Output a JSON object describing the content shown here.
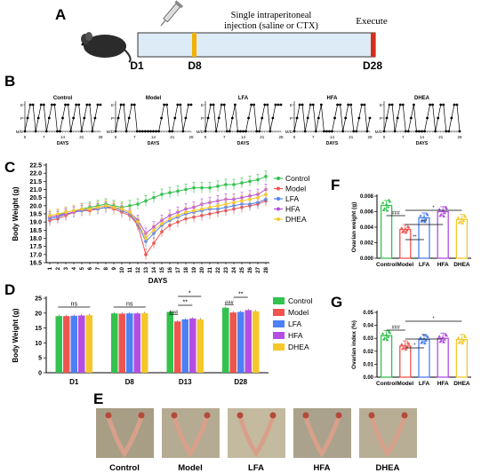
{
  "panel_letters": {
    "A": "A",
    "B": "B",
    "C": "C",
    "D": "D",
    "E": "E",
    "F": "F",
    "G": "G"
  },
  "colors": {
    "Control": "#33c24d",
    "Model": "#f0544f",
    "LFA": "#4d7ff5",
    "HFA": "#b44ee3",
    "DHEA": "#f6c72b",
    "timeline_fill": "#dcebf6",
    "timeline_marker_d8": "#f0b100",
    "timeline_marker_d28": "#d32f1e"
  },
  "panelA": {
    "injection_label_line1": "Single intraperitoneal",
    "injection_label_line2": "injection (saline or CTX)",
    "execute_label": "Execute",
    "day_labels": [
      "D1",
      "D8",
      "D28"
    ]
  },
  "panelB": {
    "groups": [
      "Control",
      "Model",
      "LFA",
      "HFA",
      "DHEA"
    ],
    "y_ticks": [
      "E",
      "P",
      "M/D"
    ],
    "x_ticks": [
      "0",
      "7",
      "14",
      "21",
      "28"
    ],
    "xlabel": "DAYS"
  },
  "panelE": {
    "labels": [
      "Control",
      "Model",
      "LFA",
      "HFA",
      "DHEA"
    ]
  },
  "chart_data": [
    {
      "id": "C",
      "type": "line",
      "xlabel": "DAYS",
      "ylabel": "Body Weight (g)",
      "ylim": [
        16.5,
        22.5
      ],
      "yticks": [
        16.5,
        17.0,
        17.5,
        18.0,
        18.5,
        19.0,
        19.5,
        20.0,
        20.5,
        21.0,
        21.5,
        22.0,
        22.5
      ],
      "x": [
        1,
        2,
        3,
        4,
        5,
        6,
        7,
        8,
        9,
        10,
        11,
        12,
        13,
        14,
        15,
        16,
        17,
        18,
        19,
        20,
        21,
        22,
        23,
        24,
        25,
        26,
        27,
        28
      ],
      "legend_position": "top-right",
      "series": [
        {
          "name": "Control",
          "values": [
            19.3,
            19.4,
            19.6,
            19.7,
            19.8,
            19.9,
            20.0,
            20.1,
            20.0,
            19.9,
            20.0,
            20.1,
            20.3,
            20.5,
            20.7,
            20.8,
            20.9,
            21.0,
            21.1,
            21.1,
            21.1,
            21.2,
            21.3,
            21.3,
            21.4,
            21.5,
            21.6,
            21.8
          ]
        },
        {
          "name": "Model",
          "values": [
            19.1,
            19.2,
            19.4,
            19.6,
            19.7,
            19.7,
            19.8,
            19.9,
            19.8,
            19.6,
            19.4,
            18.8,
            17.0,
            17.7,
            18.4,
            18.8,
            19.0,
            19.2,
            19.3,
            19.4,
            19.5,
            19.6,
            19.7,
            19.8,
            19.9,
            20.0,
            20.1,
            20.3
          ]
        },
        {
          "name": "LFA",
          "values": [
            19.2,
            19.3,
            19.5,
            19.6,
            19.7,
            19.8,
            19.8,
            19.9,
            19.9,
            19.7,
            19.5,
            18.9,
            17.8,
            18.3,
            18.8,
            19.1,
            19.3,
            19.5,
            19.6,
            19.7,
            19.8,
            19.8,
            19.9,
            20.0,
            20.1,
            20.1,
            20.2,
            20.4
          ]
        },
        {
          "name": "HFA",
          "values": [
            19.3,
            19.4,
            19.5,
            19.6,
            19.8,
            19.8,
            19.9,
            20.0,
            19.9,
            19.8,
            19.6,
            19.1,
            18.3,
            18.7,
            19.1,
            19.4,
            19.6,
            19.8,
            19.9,
            20.1,
            20.2,
            20.3,
            20.4,
            20.4,
            20.5,
            20.6,
            20.7,
            21.0
          ]
        },
        {
          "name": "DHEA",
          "values": [
            19.4,
            19.5,
            19.6,
            19.7,
            19.8,
            19.8,
            19.9,
            20.0,
            19.9,
            19.8,
            19.6,
            19.0,
            18.0,
            18.5,
            18.9,
            19.2,
            19.4,
            19.6,
            19.7,
            19.8,
            19.9,
            20.0,
            20.1,
            20.2,
            20.3,
            20.4,
            20.5,
            20.7
          ]
        }
      ]
    },
    {
      "id": "D",
      "type": "bar",
      "ylabel": "Body Weight (g)",
      "ylim": [
        0,
        25
      ],
      "yticks": [
        0,
        5,
        10,
        15,
        20,
        25
      ],
      "categories": [
        "D1",
        "D8",
        "D13",
        "D28"
      ],
      "legend_position": "right",
      "series": [
        {
          "name": "Control",
          "values": [
            19.0,
            19.9,
            20.4,
            21.8
          ]
        },
        {
          "name": "Model",
          "values": [
            19.0,
            19.8,
            17.2,
            20.2
          ]
        },
        {
          "name": "LFA",
          "values": [
            19.1,
            19.9,
            17.9,
            20.4
          ]
        },
        {
          "name": "HFA",
          "values": [
            19.2,
            19.9,
            18.2,
            21.0
          ]
        },
        {
          "name": "DHEA",
          "values": [
            19.3,
            20.0,
            17.9,
            20.6
          ]
        }
      ],
      "annotations": [
        "ns",
        "ns",
        "###",
        "**",
        "*",
        "###",
        "**"
      ]
    },
    {
      "id": "F",
      "type": "bar",
      "ylabel": "Ovarian weight (g)",
      "ylim": [
        0,
        0.008
      ],
      "yticks": [
        "0.000",
        "0.002",
        "0.004",
        "0.006",
        "0.008"
      ],
      "categories": [
        "Control",
        "Model",
        "LFA",
        "HFA",
        "DHEA"
      ],
      "values": [
        0.0068,
        0.0037,
        0.0052,
        0.006,
        0.005
      ],
      "annotations": [
        "###",
        "**",
        "***",
        "*"
      ]
    },
    {
      "id": "G",
      "type": "bar",
      "ylabel": "Ovarian index (%)",
      "ylim": [
        0,
        0.05
      ],
      "yticks": [
        "0.00",
        "0.01",
        "0.02",
        "0.03",
        "0.04",
        "0.05"
      ],
      "categories": [
        "Control",
        "Model",
        "LFA",
        "HFA",
        "DHEA"
      ],
      "values": [
        0.032,
        0.024,
        0.029,
        0.03,
        0.029
      ],
      "annotations": [
        "###",
        "*",
        "**",
        "*"
      ]
    }
  ]
}
